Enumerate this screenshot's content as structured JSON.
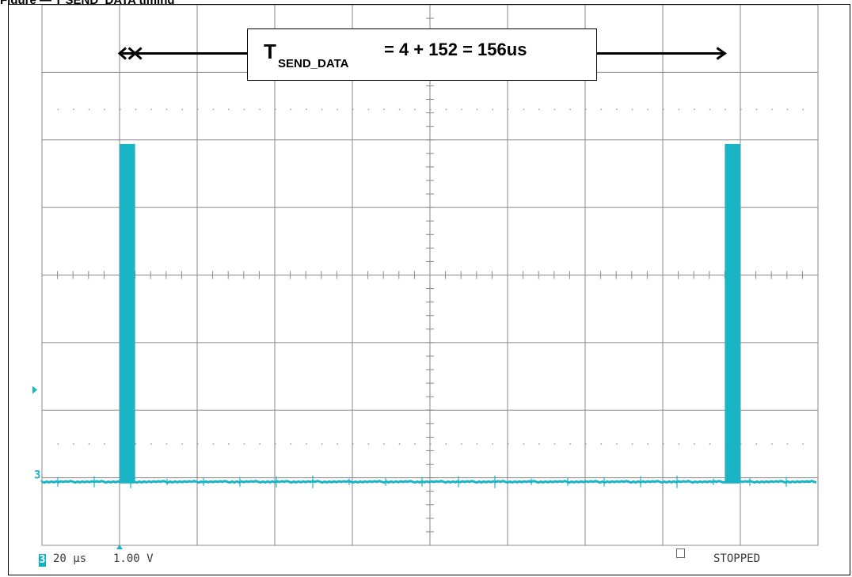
{
  "caption": "Figure — T SEND_DATA timing",
  "formula": {
    "symbol": "T",
    "subscript": "SEND_DATA",
    "expression": "= 4 + 152 = 156us"
  },
  "readout": {
    "channel": "3",
    "timebase": "20 µs",
    "volts": "1.00 V",
    "status": "STOPPED"
  },
  "colors": {
    "trace": "#19b4c6",
    "grid": "#8a8a8a",
    "arrow": "#000000"
  },
  "chart_data": {
    "type": "line",
    "title": "",
    "xlabel": "",
    "ylabel": "",
    "time_per_division_us": 20,
    "volts_per_division": 1.0,
    "divisions_x": 10,
    "divisions_y": 8,
    "series": [
      {
        "channel": "3",
        "pulses": [
          {
            "start_us": 20,
            "width_us": 4
          },
          {
            "start_us": 176,
            "width_us": 4
          }
        ],
        "baseline_v": 0,
        "high_v": 5.0
      }
    ],
    "annotation": {
      "label": "T SEND_DATA = 4 + 152 = 156us",
      "from_us": 20,
      "to_us": 176
    }
  }
}
